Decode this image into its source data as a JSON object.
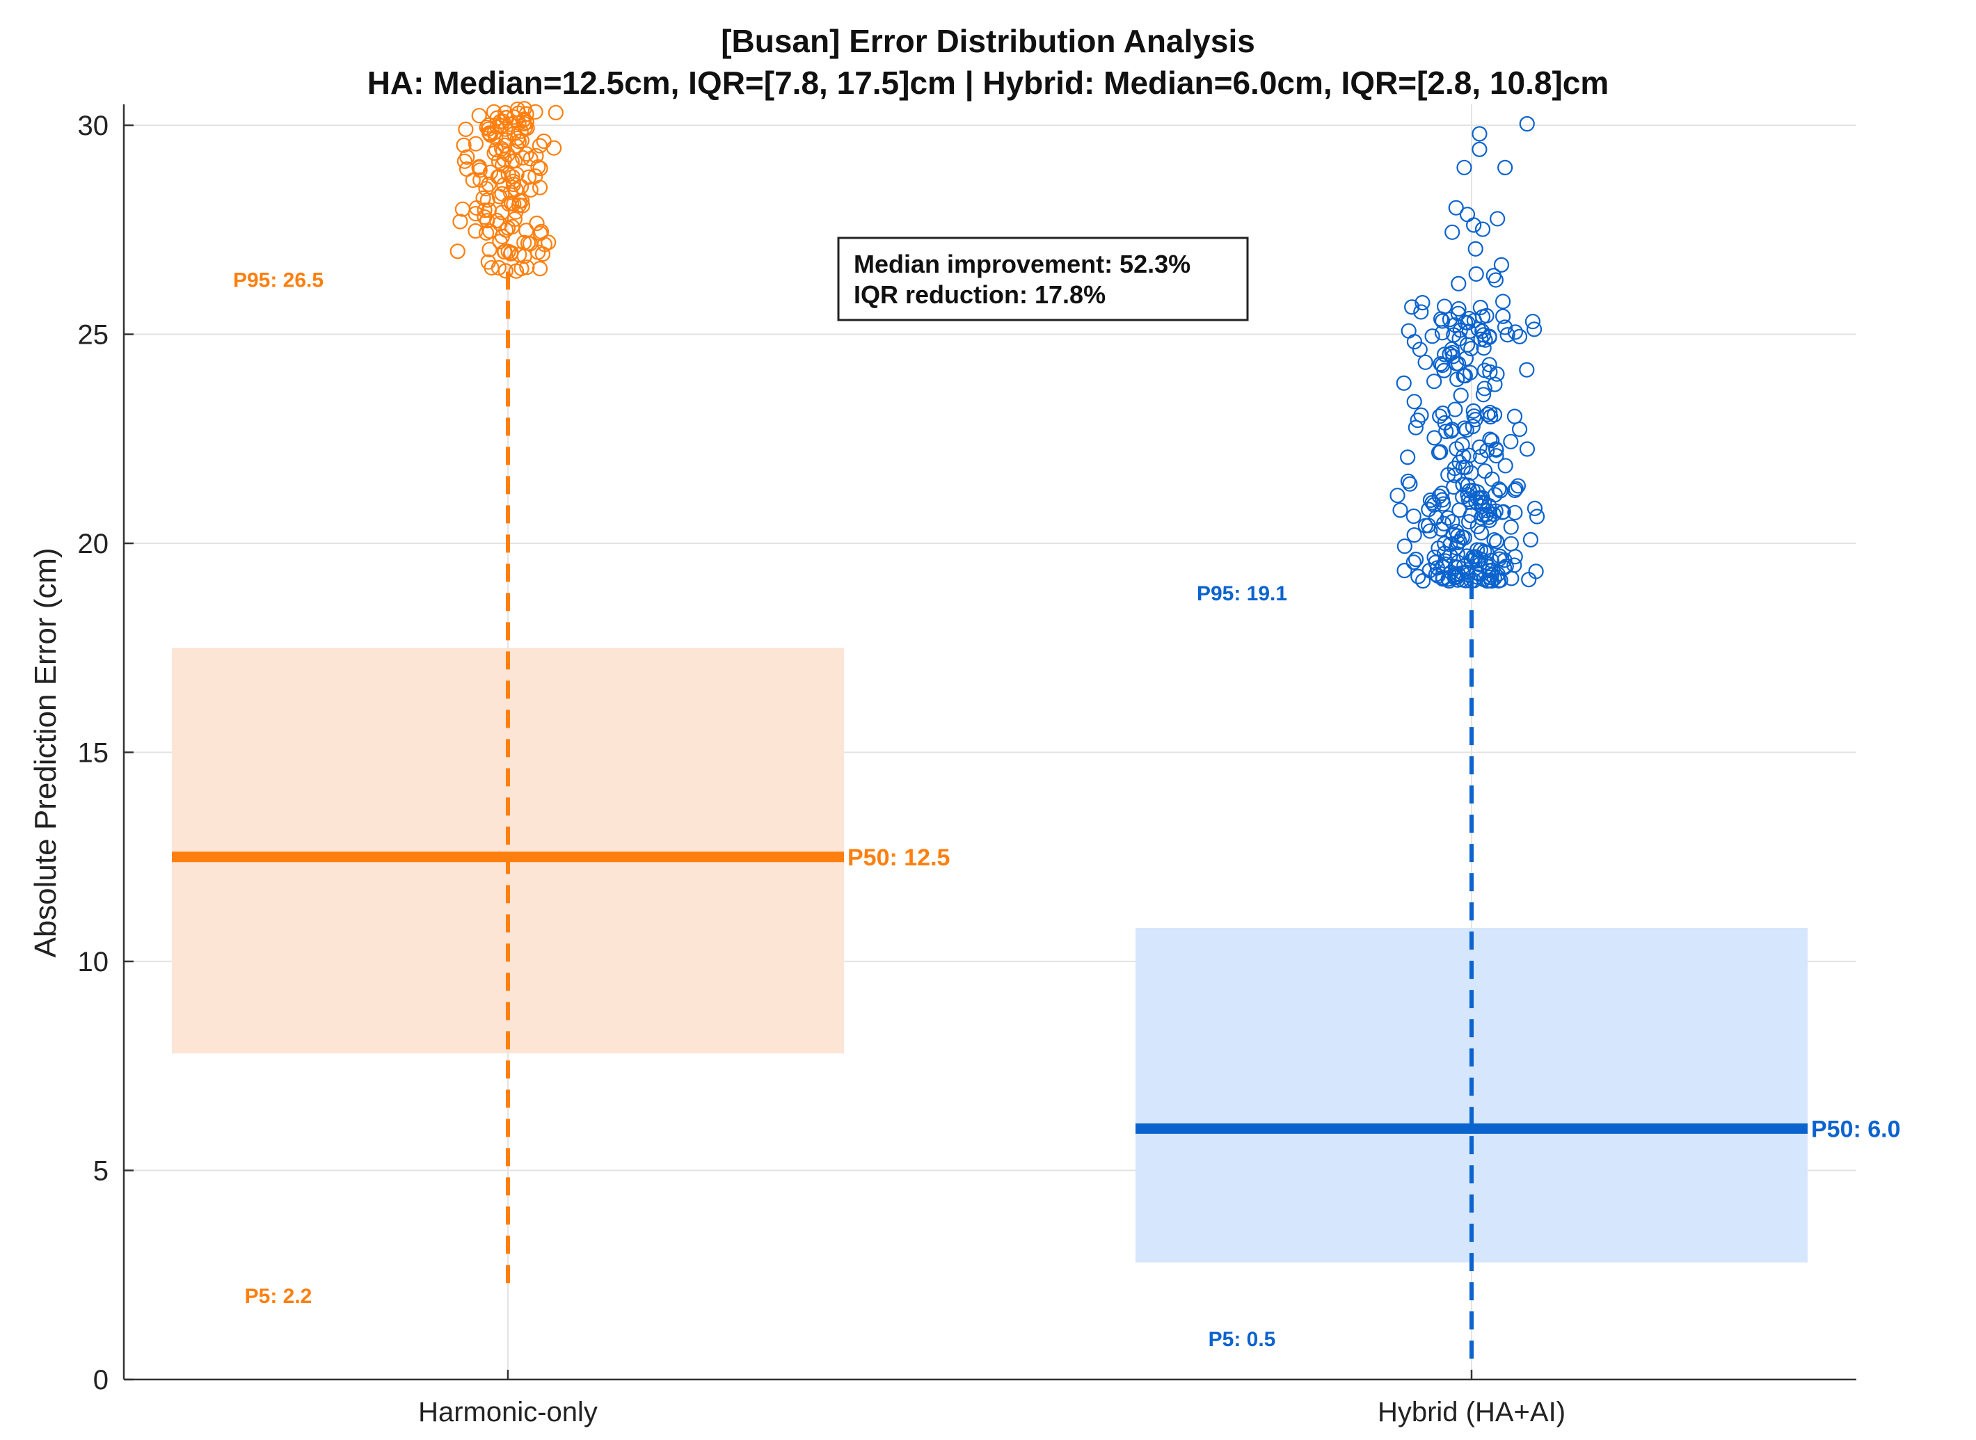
{
  "chart_data": {
    "type": "box-scatter",
    "title": "[Busan] Error Distribution Analysis",
    "subtitle": "HA: Median=12.5cm, IQR=[7.8, 17.5]cm | Hybrid: Median=6.0cm, IQR=[2.8, 10.8]cm",
    "xlabel": "",
    "ylabel": "Absolute Prediction Error (cm)",
    "ylim": [
      0,
      30.5
    ],
    "yticks": [
      0,
      5,
      10,
      15,
      20,
      25,
      30
    ],
    "grid": true,
    "categories": [
      "Harmonic-only",
      "Hybrid (HA+AI)"
    ],
    "series": [
      {
        "name": "Harmonic-only",
        "color": "#ff7f0e",
        "box_fill": "#fde5d6",
        "p5": 2.2,
        "q1": 7.8,
        "median": 12.5,
        "q3": 17.5,
        "p95": 26.5,
        "p5_label": "P5: 2.2",
        "p50_label": "P50: 12.5",
        "p95_label": "P95: 26.5",
        "outlier_range": [
          26.5,
          30.4
        ],
        "outlier_count": 150
      },
      {
        "name": "Hybrid (HA+AI)",
        "color": "#0b63ce",
        "box_fill": "#d6e6fd",
        "p5": 0.5,
        "q1": 2.8,
        "median": 6.0,
        "q3": 10.8,
        "p95": 19.1,
        "p5_label": "P5: 0.5",
        "p50_label": "P50: 6.0",
        "p95_label": "P95: 19.1",
        "outlier_range": [
          19.1,
          30.1
        ],
        "outlier_count": 300
      }
    ],
    "annotation": {
      "lines": [
        "Median improvement: 52.3%",
        "IQR reduction: 17.8%"
      ]
    }
  },
  "colors": {
    "ha": "#ff7f0e",
    "hybrid": "#0b63ce",
    "grid": "#e3e3e3",
    "axis": "#333333"
  }
}
